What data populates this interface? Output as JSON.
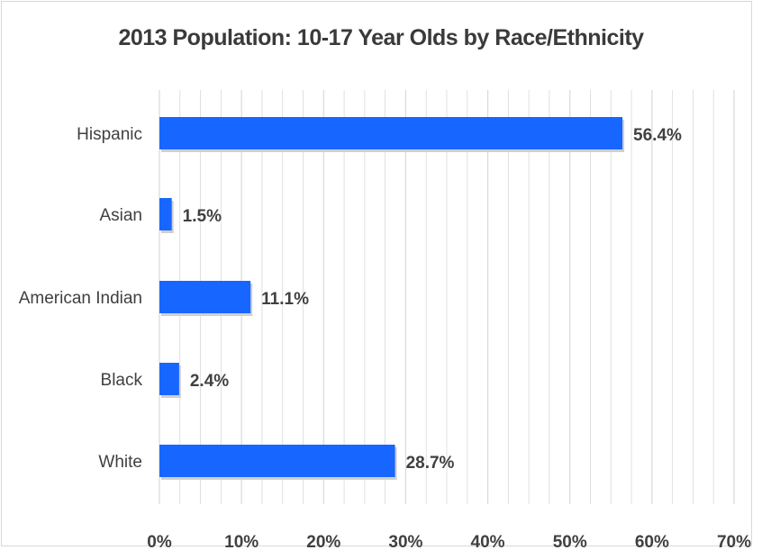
{
  "chart_data": {
    "type": "bar",
    "orientation": "horizontal",
    "title": "2013 Population: 10-17 Year Olds by Race/Ethnicity",
    "categories": [
      "Hispanic",
      "Asian",
      "American Indian",
      "Black",
      "White"
    ],
    "values": [
      56.4,
      1.5,
      11.1,
      2.4,
      28.7
    ],
    "value_labels": [
      "56.4%",
      "1.5%",
      "11.1%",
      "2.4%",
      "28.7%"
    ],
    "xlim": [
      0,
      70
    ],
    "x_ticks": [
      0,
      10,
      20,
      30,
      40,
      50,
      60,
      70
    ],
    "x_tick_labels": [
      "0%",
      "10%",
      "20%",
      "30%",
      "40%",
      "50%",
      "60%",
      "70%"
    ],
    "grid": true,
    "legend": "none",
    "bar_color": "#1766ff",
    "gridline_color": "#d9d9d9"
  }
}
